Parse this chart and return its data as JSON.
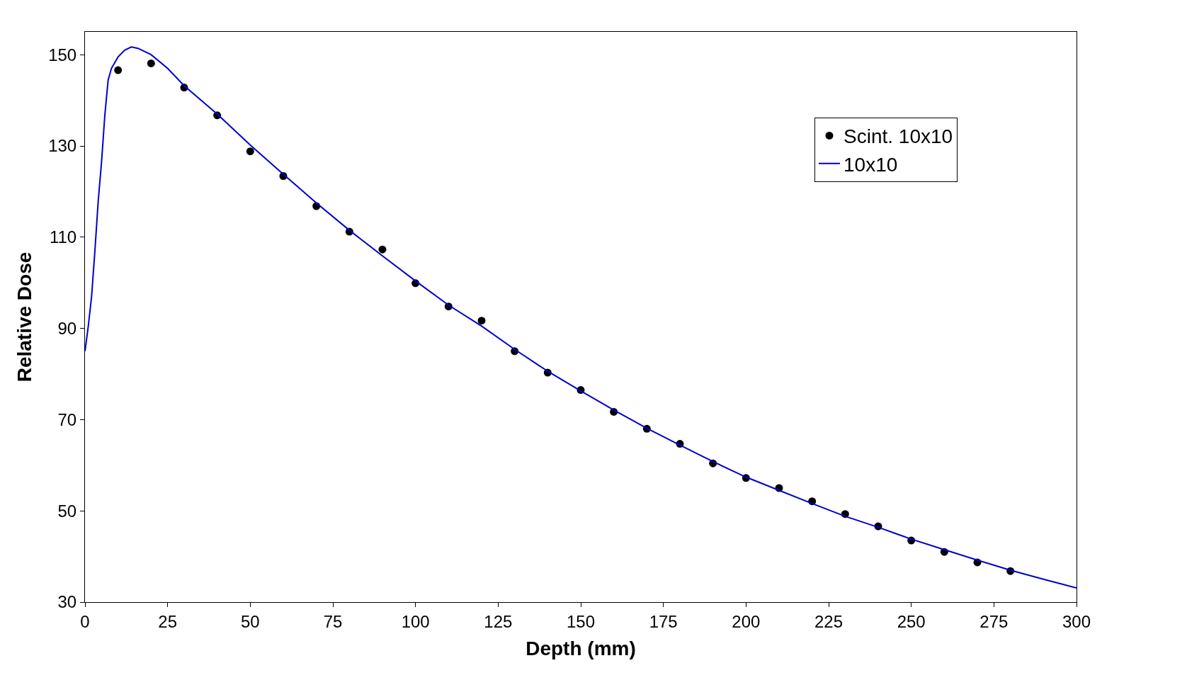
{
  "chart_data": {
    "type": "line",
    "xlabel": "Depth (mm)",
    "ylabel": "Relative Dose",
    "xlim": [
      0,
      300
    ],
    "xticks": [
      0,
      25,
      50,
      75,
      100,
      125,
      150,
      175,
      200,
      225,
      250,
      275,
      300
    ],
    "ylim": [
      30,
      155
    ],
    "yticks": [
      30,
      50,
      70,
      90,
      110,
      130,
      150
    ],
    "legend": "top right",
    "series": [
      {
        "name": "Scint. 10x10",
        "type": "scatter",
        "marker": "circle",
        "color": "#000000",
        "x": [
          10,
          20,
          30,
          40,
          50,
          60,
          70,
          80,
          90,
          100,
          110,
          120,
          130,
          140,
          150,
          160,
          170,
          180,
          190,
          200,
          210,
          220,
          230,
          240,
          250,
          260,
          270,
          280
        ],
        "values": [
          146.6,
          148.1,
          142.8,
          136.7,
          128.8,
          123.4,
          116.8,
          111.2,
          107.3,
          99.9,
          94.8,
          91.7,
          85.0,
          80.3,
          76.5,
          71.7,
          68.0,
          64.7,
          60.4,
          57.2,
          55.0,
          52.1,
          49.3,
          46.6,
          43.5,
          41.0,
          38.7,
          36.8
        ]
      },
      {
        "name": "10x10",
        "line_style": "solid",
        "color": "#0000cc",
        "x": [
          0,
          1,
          2,
          3,
          4,
          5,
          6,
          7,
          8,
          10,
          12,
          14,
          16,
          20,
          25,
          30,
          40,
          50,
          60,
          70,
          80,
          90,
          100,
          110,
          120,
          130,
          140,
          150,
          160,
          170,
          180,
          190,
          200,
          210,
          220,
          230,
          240,
          250,
          260,
          270,
          280,
          290,
          300
        ],
        "values": [
          85.0,
          90.5,
          97.0,
          107.0,
          117.9,
          126.4,
          136.7,
          144.4,
          147.0,
          149.5,
          151.0,
          151.7,
          151.4,
          150.0,
          147.0,
          143.2,
          137.0,
          130.2,
          123.8,
          117.5,
          111.5,
          105.9,
          100.4,
          95.1,
          90.5,
          85.4,
          80.6,
          76.3,
          72.1,
          68.1,
          64.4,
          60.8,
          57.4,
          54.5,
          51.6,
          48.8,
          46.4,
          43.8,
          41.5,
          39.2,
          37.0,
          35.0,
          33.1
        ]
      }
    ]
  }
}
